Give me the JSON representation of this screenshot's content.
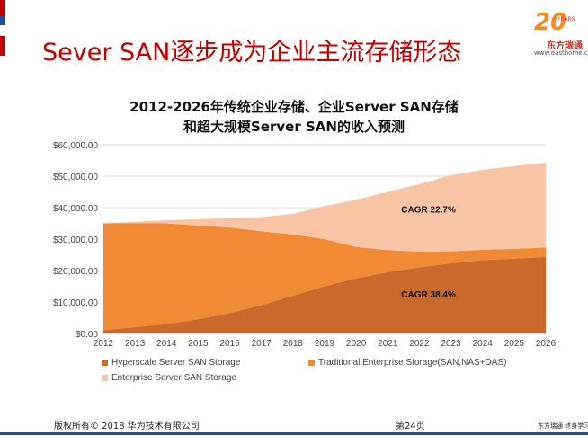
{
  "slide": {
    "title": "Sever SAN逐步成为企业主流存储形态",
    "footer_copyright": "版权所有© 2018 华为技术有限公司",
    "footer_page": "第24页",
    "footer_brand": "东方瑞通  终身学习"
  },
  "logo": {
    "number": "20",
    "years_text": "YEARS",
    "name": "东方瑞通",
    "url": "www.easthome.com"
  },
  "colors": {
    "hyperscale": "#c9692b",
    "traditional": "#f08a34",
    "enterprise_server": "#f7c4a6",
    "grid": "#d9d9d9",
    "title_red": "#c00000"
  },
  "chart_data": {
    "type": "area",
    "stacked": true,
    "title_line1": "2012-2026年传统企业存储、企业Server SAN存储",
    "title_line2": "和超大规模Server SAN的收入预测",
    "x": [
      "2012",
      "2013",
      "2014",
      "2015",
      "2016",
      "2017",
      "2018",
      "2019",
      "2020",
      "2021",
      "2022",
      "2023",
      "2024",
      "2025",
      "2026"
    ],
    "ylim": [
      0,
      60000
    ],
    "yticks": [
      0,
      10000,
      20000,
      30000,
      40000,
      50000,
      60000
    ],
    "ytick_labels": [
      "$0.00",
      "$10,000.00",
      "$20,000.00",
      "$30,000.00",
      "$40,000.00",
      "$50,000.00",
      "$60,000.00"
    ],
    "grid": true,
    "legend_position": "bottom",
    "series": [
      {
        "name": "Hyperscale Server SAN Storage",
        "values": [
          1000,
          2000,
          3000,
          4500,
          6500,
          9000,
          12000,
          15000,
          17500,
          19500,
          21000,
          22300,
          23300,
          23800,
          24300
        ]
      },
      {
        "name": "Traditional Enterprise Storage(SAN,NAS+DAS)",
        "values": [
          34000,
          33000,
          32000,
          29800,
          27200,
          23500,
          19500,
          15000,
          10000,
          7000,
          5000,
          3800,
          3300,
          3100,
          3000
        ]
      },
      {
        "name": "Enterprise Server SAN Storage",
        "values": [
          0,
          500,
          1000,
          2000,
          3000,
          4500,
          6500,
          10500,
          15000,
          18500,
          21500,
          24200,
          25400,
          26300,
          27000
        ]
      }
    ],
    "annotations": [
      {
        "text": "CAGR 22.7%",
        "year": "2021",
        "value": 38500
      },
      {
        "text": "CAGR 38.4%",
        "year": "2021",
        "value": 11500
      }
    ]
  }
}
